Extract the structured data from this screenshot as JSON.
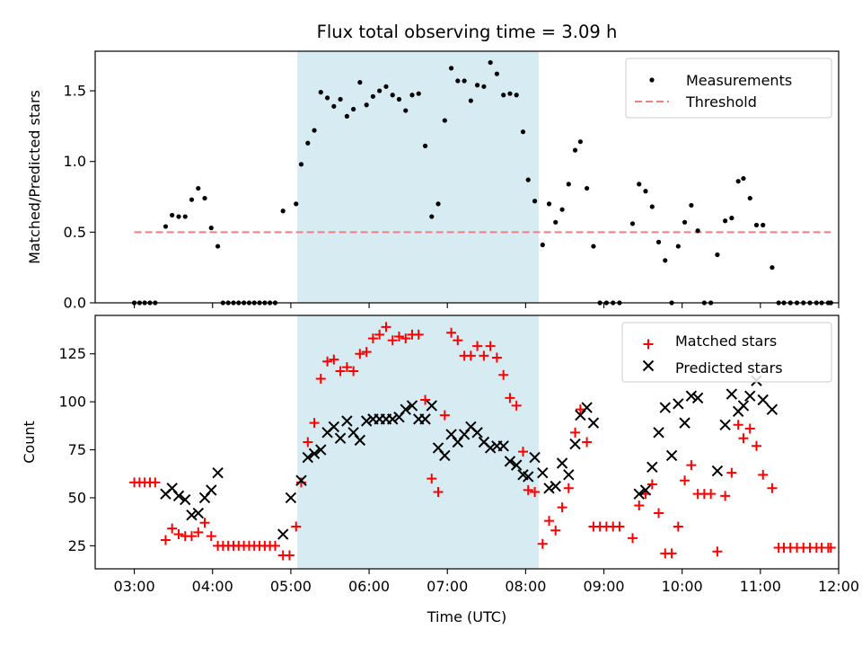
{
  "title": "Flux total observing time = 3.09 h",
  "colors": {
    "measurement": "#000000",
    "threshold": "#f08080",
    "span": "#add8e6",
    "matched": "#ff0000",
    "predicted": "#000000"
  },
  "chart_data": [
    {
      "type": "scatter",
      "ylabel": "Matched/Predicted stars",
      "xlim": [
        2.5,
        12.0
      ],
      "ylim": [
        0,
        1.78
      ],
      "yticks": [
        0.0,
        0.5,
        1.0,
        1.5
      ],
      "ytick_labels": [
        "0.0",
        "0.5",
        "1.0",
        "1.5"
      ],
      "shaded_span": [
        5.083,
        8.167
      ],
      "legend": {
        "position": "top-right",
        "entries": [
          "Measurements",
          "Threshold"
        ]
      },
      "threshold": {
        "name": "Threshold",
        "y": 0.5,
        "x": [
          3.0,
          11.9
        ]
      },
      "series": [
        {
          "name": "Measurements",
          "x": [
            3.0,
            3.067,
            3.133,
            3.2,
            3.267,
            3.4,
            3.483,
            3.567,
            3.65,
            3.733,
            3.817,
            3.9,
            3.983,
            4.067,
            4.133,
            4.2,
            4.267,
            4.333,
            4.4,
            4.467,
            4.533,
            4.6,
            4.667,
            4.733,
            4.8,
            4.9,
            5.067,
            5.133,
            5.217,
            5.3,
            5.383,
            5.467,
            5.55,
            5.633,
            5.717,
            5.8,
            5.883,
            5.967,
            6.05,
            6.133,
            6.217,
            6.3,
            6.383,
            6.467,
            6.55,
            6.633,
            6.717,
            6.8,
            6.883,
            6.967,
            7.05,
            7.133,
            7.217,
            7.3,
            7.383,
            7.467,
            7.55,
            7.633,
            7.717,
            7.8,
            7.883,
            7.967,
            8.033,
            8.117,
            8.217,
            8.3,
            8.383,
            8.467,
            8.55,
            8.633,
            8.7,
            8.783,
            8.867,
            8.95,
            9.033,
            9.117,
            9.2,
            9.367,
            9.45,
            9.533,
            9.617,
            9.7,
            9.783,
            9.867,
            9.95,
            10.033,
            10.117,
            10.2,
            10.283,
            10.367,
            10.45,
            10.55,
            10.633,
            10.717,
            10.783,
            10.867,
            10.95,
            11.033,
            11.15,
            11.233,
            11.3,
            11.383,
            11.467,
            11.55,
            11.633,
            11.717,
            11.783,
            11.867,
            11.9
          ],
          "y": [
            0.0,
            0.0,
            0.0,
            0.0,
            0.0,
            0.54,
            0.62,
            0.61,
            0.61,
            0.73,
            0.81,
            0.74,
            0.53,
            0.4,
            0.0,
            0.0,
            0.0,
            0.0,
            0.0,
            0.0,
            0.0,
            0.0,
            0.0,
            0.0,
            0.0,
            0.65,
            0.7,
            0.98,
            1.13,
            1.22,
            1.49,
            1.45,
            1.39,
            1.44,
            1.32,
            1.37,
            1.56,
            1.4,
            1.46,
            1.5,
            1.53,
            1.47,
            1.44,
            1.36,
            1.47,
            1.48,
            1.11,
            0.61,
            0.7,
            1.29,
            1.66,
            1.57,
            1.57,
            1.43,
            1.54,
            1.53,
            1.7,
            1.62,
            1.47,
            1.48,
            1.47,
            1.21,
            0.87,
            0.72,
            0.41,
            0.7,
            0.57,
            0.66,
            0.84,
            1.08,
            1.14,
            0.81,
            0.4,
            0.0,
            0.0,
            0.0,
            0.0,
            0.56,
            0.84,
            0.79,
            0.68,
            0.43,
            0.3,
            0.0,
            0.4,
            0.57,
            0.69,
            0.51,
            0.0,
            0.0,
            0.34,
            0.58,
            0.6,
            0.86,
            0.88,
            0.74,
            0.55,
            0.55,
            0.25,
            0.0,
            0.0,
            0.0,
            0.0,
            0.0,
            0.0,
            0.0,
            0.0,
            0.0,
            0.0
          ]
        }
      ]
    },
    {
      "type": "scatter",
      "xlabel": "Time (UTC)",
      "ylabel": "Count",
      "xlim": [
        2.5,
        12.0
      ],
      "ylim": [
        13,
        145
      ],
      "xticks": [
        3,
        4,
        5,
        6,
        7,
        8,
        9,
        10,
        11,
        12
      ],
      "xtick_labels": [
        "03:00",
        "04:00",
        "05:00",
        "06:00",
        "07:00",
        "08:00",
        "09:00",
        "10:00",
        "11:00",
        "12:00"
      ],
      "yticks": [
        25,
        50,
        75,
        100,
        125
      ],
      "ytick_labels": [
        "25",
        "50",
        "75",
        "100",
        "125"
      ],
      "shaded_span": [
        5.083,
        8.167
      ],
      "legend": {
        "position": "top-right",
        "entries": [
          "Matched stars",
          "Predicted stars"
        ]
      },
      "series": [
        {
          "name": "Matched stars",
          "marker": "plus",
          "x": [
            3.0,
            3.067,
            3.133,
            3.2,
            3.267,
            3.4,
            3.483,
            3.567,
            3.65,
            3.733,
            3.817,
            3.9,
            3.983,
            4.067,
            4.133,
            4.2,
            4.267,
            4.333,
            4.4,
            4.467,
            4.533,
            4.6,
            4.667,
            4.733,
            4.8,
            4.9,
            4.983,
            5.067,
            5.133,
            5.217,
            5.3,
            5.383,
            5.467,
            5.55,
            5.633,
            5.717,
            5.8,
            5.883,
            5.967,
            6.05,
            6.133,
            6.217,
            6.3,
            6.383,
            6.467,
            6.55,
            6.633,
            6.717,
            6.8,
            6.883,
            6.967,
            7.05,
            7.133,
            7.217,
            7.3,
            7.383,
            7.467,
            7.55,
            7.633,
            7.717,
            7.8,
            7.883,
            7.967,
            8.033,
            8.117,
            8.217,
            8.3,
            8.383,
            8.467,
            8.55,
            8.633,
            8.7,
            8.783,
            8.867,
            8.95,
            9.033,
            9.117,
            9.2,
            9.367,
            9.45,
            9.533,
            9.617,
            9.7,
            9.783,
            9.867,
            9.95,
            10.033,
            10.117,
            10.2,
            10.283,
            10.367,
            10.45,
            10.55,
            10.633,
            10.717,
            10.783,
            10.867,
            10.95,
            11.033,
            11.15,
            11.233,
            11.3,
            11.383,
            11.467,
            11.55,
            11.633,
            11.717,
            11.783,
            11.867,
            11.9
          ],
          "y": [
            58,
            58,
            58,
            58,
            58,
            28,
            34,
            31,
            30,
            30,
            32,
            37,
            30,
            25,
            25,
            25,
            25,
            25,
            25,
            25,
            25,
            25,
            25,
            25,
            25,
            20,
            20,
            35,
            58,
            79,
            89,
            112,
            121,
            122,
            116,
            118,
            116,
            125,
            126,
            133,
            135,
            139,
            132,
            134,
            133,
            135,
            135,
            101,
            60,
            53,
            93,
            136,
            132,
            124,
            124,
            129,
            124,
            129,
            123,
            114,
            102,
            98,
            74,
            54,
            53,
            26,
            38,
            33,
            45,
            55,
            84,
            96,
            79,
            35,
            35,
            35,
            35,
            35,
            29,
            46,
            52,
            57,
            42,
            21,
            21,
            35,
            59,
            67,
            52,
            52,
            52,
            22,
            51,
            63,
            88,
            81,
            86,
            77,
            62,
            55,
            24,
            24,
            24,
            24,
            24,
            24,
            24,
            24,
            24,
            24
          ]
        },
        {
          "name": "Predicted stars",
          "marker": "x",
          "x": [
            3.4,
            3.483,
            3.567,
            3.65,
            3.733,
            3.817,
            3.9,
            3.983,
            4.067,
            4.9,
            5.0,
            5.133,
            5.217,
            5.3,
            5.383,
            5.467,
            5.55,
            5.633,
            5.717,
            5.8,
            5.883,
            5.967,
            6.05,
            6.133,
            6.217,
            6.3,
            6.383,
            6.467,
            6.55,
            6.633,
            6.717,
            6.8,
            6.883,
            6.967,
            7.05,
            7.133,
            7.217,
            7.3,
            7.383,
            7.467,
            7.55,
            7.633,
            7.717,
            7.8,
            7.883,
            7.967,
            8.033,
            8.117,
            8.217,
            8.3,
            8.383,
            8.467,
            8.55,
            8.633,
            8.7,
            8.783,
            8.867,
            9.45,
            9.533,
            9.617,
            9.7,
            9.783,
            9.867,
            9.95,
            10.033,
            10.117,
            10.2,
            10.45,
            10.55,
            10.633,
            10.717,
            10.783,
            10.867,
            10.95,
            11.033,
            11.15
          ],
          "y": [
            52,
            55,
            51,
            49,
            41,
            42,
            50,
            54,
            63,
            31,
            50,
            59,
            71,
            73,
            75,
            84,
            87,
            81,
            90,
            84,
            80,
            90,
            91,
            91,
            91,
            91,
            92,
            96,
            98,
            91,
            91,
            98,
            76,
            72,
            83,
            79,
            83,
            87,
            84,
            79,
            76,
            77,
            77,
            69,
            67,
            62,
            61,
            71,
            63,
            55,
            56,
            68,
            62,
            78,
            93,
            97,
            89,
            52,
            54,
            66,
            84,
            97,
            72,
            99,
            89,
            103,
            102,
            64,
            88,
            104,
            95,
            98,
            103,
            111,
            101,
            96
          ]
        }
      ]
    }
  ]
}
